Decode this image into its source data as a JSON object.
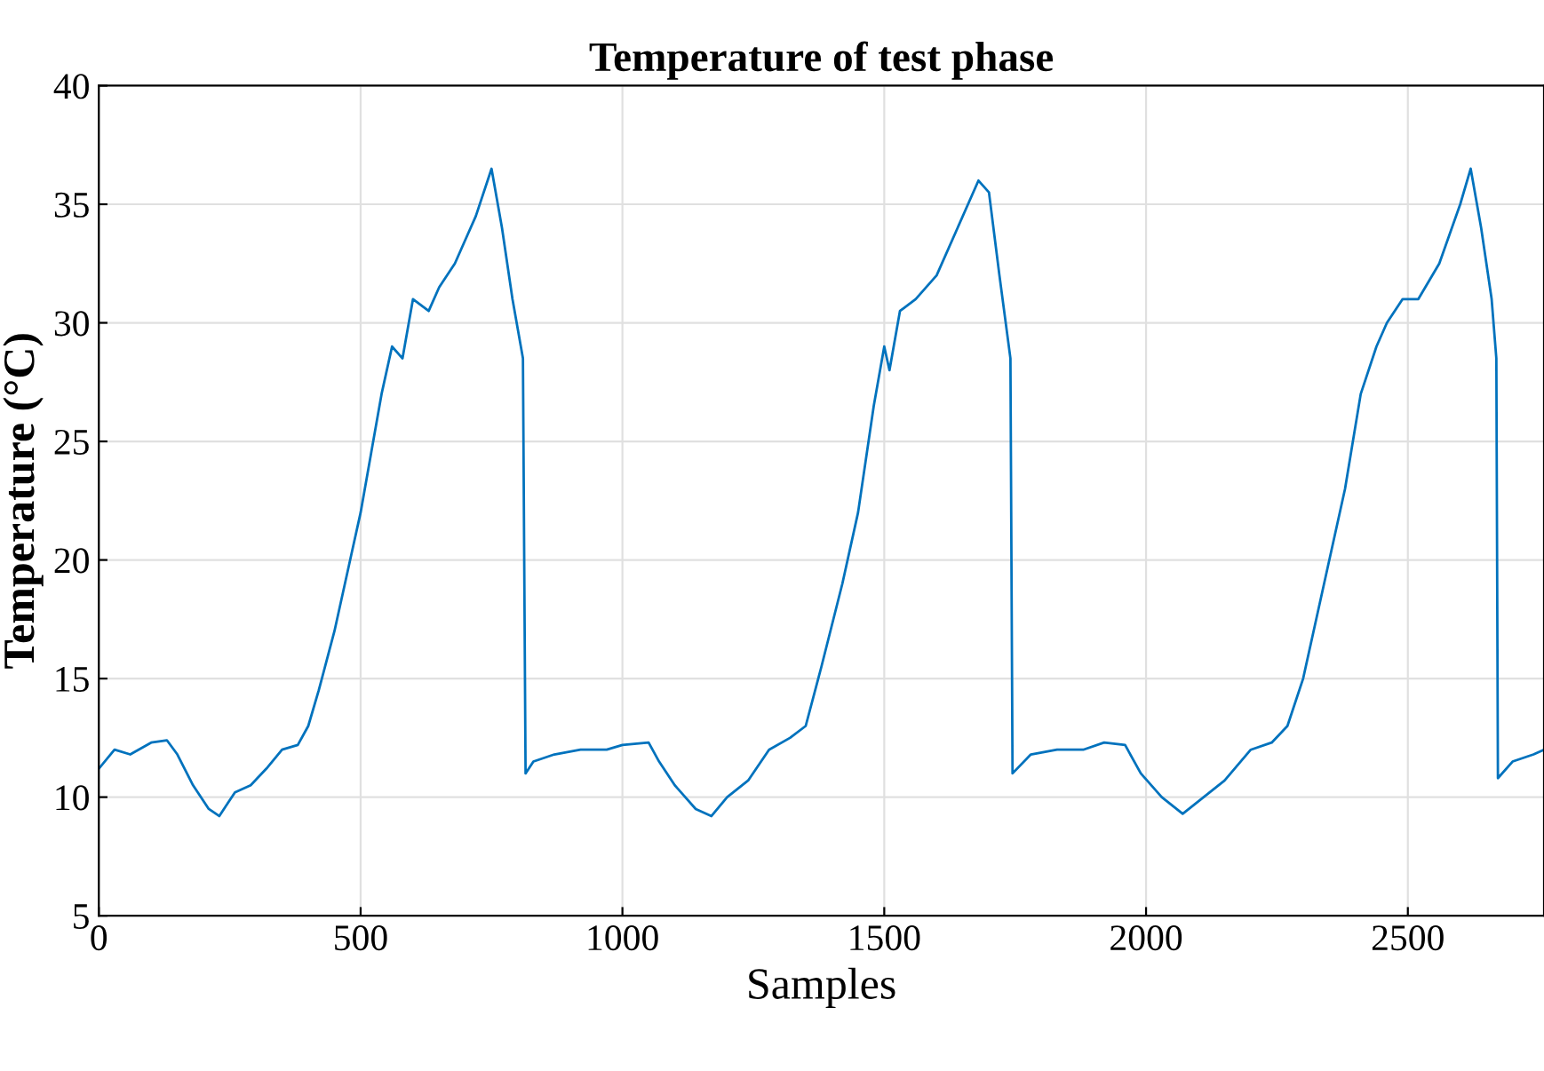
{
  "chart_data": {
    "type": "line",
    "title": "Temperature of test phase",
    "xlabel": "Samples",
    "ylabel": "Temperature (°C)",
    "x": [
      0,
      30,
      60,
      100,
      130,
      150,
      180,
      210,
      230,
      260,
      290,
      320,
      350,
      380,
      400,
      420,
      450,
      480,
      500,
      520,
      540,
      560,
      580,
      600,
      630,
      650,
      680,
      700,
      720,
      750,
      770,
      790,
      810,
      815,
      830,
      870,
      920,
      970,
      1000,
      1050,
      1070,
      1100,
      1140,
      1170,
      1200,
      1240,
      1280,
      1320,
      1350,
      1380,
      1420,
      1450,
      1480,
      1500,
      1510,
      1530,
      1560,
      1600,
      1640,
      1680,
      1700,
      1720,
      1741,
      1745,
      1780,
      1830,
      1880,
      1920,
      1960,
      1990,
      2030,
      2070,
      2110,
      2150,
      2200,
      2240,
      2270,
      2300,
      2340,
      2380,
      2410,
      2440,
      2460,
      2490,
      2520,
      2560,
      2600,
      2620,
      2640,
      2660,
      2669,
      2672,
      2700,
      2740,
      2760
    ],
    "series": [
      {
        "color": "#0072bd",
        "values": [
          11.2,
          12.0,
          11.8,
          12.3,
          12.4,
          11.8,
          10.5,
          9.5,
          9.2,
          10.2,
          10.5,
          11.2,
          12.0,
          12.2,
          13,
          14.5,
          17,
          20,
          22,
          24.5,
          27,
          29,
          28.5,
          31,
          30.5,
          31.5,
          32.5,
          33.5,
          34.5,
          36.5,
          34,
          31,
          28.5,
          11,
          11.5,
          11.8,
          12,
          12,
          12.2,
          12.3,
          11.5,
          10.5,
          9.5,
          9.2,
          10,
          10.7,
          12,
          12.5,
          13,
          15.5,
          19,
          22,
          26.5,
          29,
          28,
          30.5,
          31,
          32,
          34,
          36,
          35.5,
          32,
          28.5,
          11,
          11.8,
          12,
          12,
          12.3,
          12.2,
          11,
          10,
          9.3,
          10,
          10.7,
          12,
          12.3,
          13,
          15,
          19,
          23,
          27,
          29,
          30,
          31,
          31,
          32.5,
          35,
          36.5,
          34,
          31,
          28.5,
          10.8,
          11.5,
          11.8,
          12
        ]
      }
    ],
    "xlim": [
      0,
      2760
    ],
    "ylim": [
      5,
      40
    ],
    "xticks": [
      0,
      500,
      1000,
      1500,
      2000,
      2500
    ],
    "yticks": [
      5,
      10,
      15,
      20,
      25,
      30,
      35,
      40
    ],
    "grid": true,
    "line_style": "solid",
    "marker": "none"
  }
}
